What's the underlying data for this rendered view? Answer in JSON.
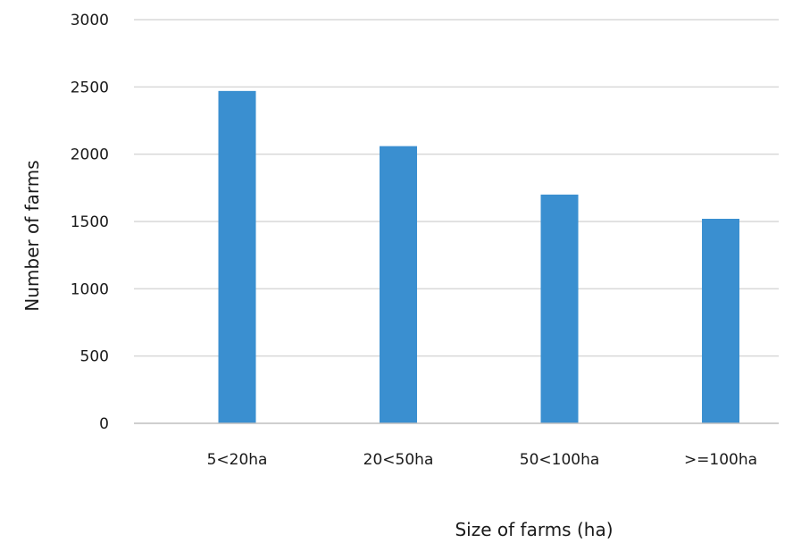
{
  "chart_data": {
    "type": "bar",
    "title": "",
    "xlabel": "Size of farms (ha)",
    "ylabel": "Number of farms",
    "categories": [
      "5<20ha",
      "20<50ha",
      "50<100ha",
      ">=100ha"
    ],
    "series": [
      {
        "values": [
          2470,
          2060,
          1700,
          1520
        ]
      }
    ],
    "ylim": [
      0,
      3000
    ],
    "yticks": [
      0,
      500,
      1000,
      1500,
      2000,
      2500,
      3000
    ],
    "grid": true,
    "legend": "none",
    "bar_color": "#3a8fd0"
  }
}
